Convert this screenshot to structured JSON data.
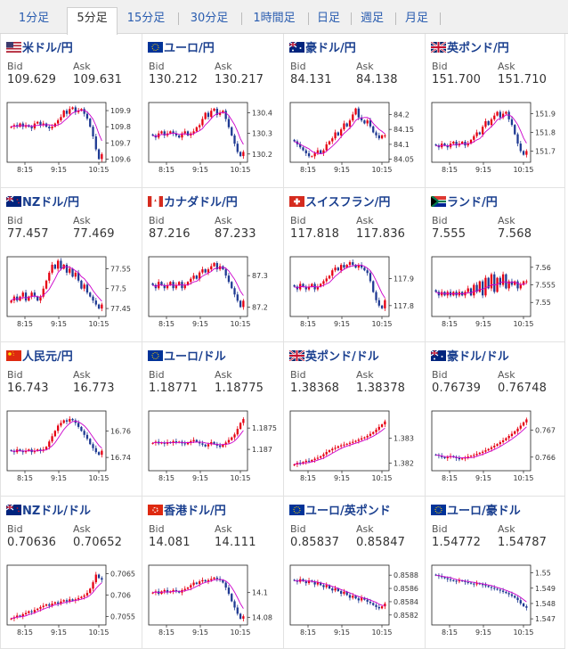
{
  "tabs": [
    {
      "label": "1分足",
      "active": false
    },
    {
      "label": "5分足",
      "active": true
    },
    {
      "label": "15分足",
      "active": false
    },
    {
      "label": "30分足",
      "active": false
    },
    {
      "label": "1時間足",
      "active": false
    },
    {
      "label": "日足",
      "active": false
    },
    {
      "label": "週足",
      "active": false
    },
    {
      "label": "月足",
      "active": false
    }
  ],
  "labels": {
    "bid": "Bid",
    "ask": "Ask"
  },
  "colors": {
    "up": "#e60012",
    "down": "#1f3a93",
    "ma": "#cc00cc",
    "link": "#1a3f8f"
  },
  "pairs": [
    {
      "name": "米ドル/円",
      "flag": "us",
      "bid": "109.629",
      "ask": "109.631",
      "x_ticks": [
        "8:15",
        "9:15",
        "10:15"
      ],
      "y_ticks": [
        "109.9",
        "109.8",
        "109.7",
        "109.6"
      ],
      "chart_data": {
        "type": "candlestick",
        "ylim": [
          109.58,
          109.95
        ],
        "close": [
          109.8,
          109.81,
          109.8,
          109.82,
          109.8,
          109.81,
          109.8,
          109.79,
          109.82,
          109.83,
          109.81,
          109.82,
          109.8,
          109.79,
          109.8,
          109.82,
          109.84,
          109.86,
          109.9,
          109.88,
          109.91,
          109.92,
          109.89,
          109.9,
          109.91,
          109.88,
          109.85,
          109.8,
          109.74,
          109.66,
          109.6,
          109.63
        ]
      }
    },
    {
      "name": "ユーロ/円",
      "flag": "eu",
      "bid": "130.212",
      "ask": "130.217",
      "x_ticks": [
        "8:15",
        "9:15",
        "10:15"
      ],
      "y_ticks": [
        "130.4",
        "130.3",
        "130.2"
      ],
      "chart_data": {
        "type": "candlestick",
        "ylim": [
          130.16,
          130.45
        ],
        "close": [
          130.29,
          130.28,
          130.3,
          130.31,
          130.29,
          130.3,
          130.31,
          130.3,
          130.29,
          130.28,
          130.3,
          130.31,
          130.29,
          130.3,
          130.31,
          130.33,
          130.34,
          130.37,
          130.4,
          130.38,
          130.41,
          130.42,
          130.39,
          130.4,
          130.41,
          130.37,
          130.33,
          130.29,
          130.25,
          130.21,
          130.19,
          130.21
        ]
      }
    },
    {
      "name": "豪ドル/円",
      "flag": "au",
      "bid": "84.131",
      "ask": "84.138",
      "x_ticks": [
        "8:15",
        "9:15",
        "10:15"
      ],
      "y_ticks": [
        "84.2",
        "84.15",
        "84.1",
        "84.05"
      ],
      "chart_data": {
        "type": "candlestick",
        "ylim": [
          84.04,
          84.24
        ],
        "close": [
          84.11,
          84.1,
          84.09,
          84.08,
          84.07,
          84.06,
          84.06,
          84.07,
          84.08,
          84.07,
          84.08,
          84.1,
          84.11,
          84.12,
          84.14,
          84.13,
          84.15,
          84.17,
          84.16,
          84.18,
          84.2,
          84.22,
          84.19,
          84.18,
          84.17,
          84.18,
          84.16,
          84.14,
          84.13,
          84.12,
          84.13,
          84.13
        ]
      }
    },
    {
      "name": "英ポンド/円",
      "flag": "gb",
      "bid": "151.700",
      "ask": "151.710",
      "x_ticks": [
        "8:15",
        "9:15",
        "10:15"
      ],
      "y_ticks": [
        "151.9",
        "151.8",
        "151.7"
      ],
      "chart_data": {
        "type": "candlestick",
        "ylim": [
          151.64,
          151.96
        ],
        "close": [
          151.73,
          151.72,
          151.74,
          151.73,
          151.72,
          151.74,
          151.75,
          151.73,
          151.74,
          151.75,
          151.73,
          151.74,
          151.76,
          151.78,
          151.8,
          151.79,
          151.83,
          151.86,
          151.84,
          151.87,
          151.89,
          151.91,
          151.88,
          151.9,
          151.91,
          151.87,
          151.84,
          151.79,
          151.74,
          151.7,
          151.68,
          151.7
        ]
      }
    },
    {
      "name": "NZドル/円",
      "flag": "nz",
      "bid": "77.457",
      "ask": "77.469",
      "x_ticks": [
        "8:15",
        "9:15",
        "10:15"
      ],
      "y_ticks": [
        "77.55",
        "77.5",
        "77.45"
      ],
      "chart_data": {
        "type": "candlestick",
        "ylim": [
          77.43,
          77.58
        ],
        "close": [
          77.47,
          77.48,
          77.47,
          77.48,
          77.49,
          77.47,
          77.48,
          77.49,
          77.48,
          77.47,
          77.48,
          77.5,
          77.52,
          77.54,
          77.56,
          77.55,
          77.57,
          77.55,
          77.56,
          77.54,
          77.55,
          77.53,
          77.54,
          77.52,
          77.5,
          77.51,
          77.49,
          77.48,
          77.47,
          77.46,
          77.45,
          77.46
        ]
      }
    },
    {
      "name": "カナダドル/円",
      "flag": "ca",
      "bid": "87.216",
      "ask": "87.233",
      "x_ticks": [
        "8:15",
        "9:15",
        "10:15"
      ],
      "y_ticks": [
        "87.3",
        "87.2"
      ],
      "chart_data": {
        "type": "candlestick",
        "ylim": [
          87.17,
          87.36
        ],
        "close": [
          87.27,
          87.26,
          87.28,
          87.27,
          87.26,
          87.27,
          87.28,
          87.26,
          87.27,
          87.28,
          87.26,
          87.27,
          87.28,
          87.29,
          87.3,
          87.29,
          87.31,
          87.32,
          87.31,
          87.32,
          87.33,
          87.34,
          87.32,
          87.33,
          87.32,
          87.3,
          87.28,
          87.26,
          87.24,
          87.22,
          87.2,
          87.22
        ]
      }
    },
    {
      "name": "スイスフラン/円",
      "flag": "ch",
      "bid": "117.818",
      "ask": "117.836",
      "x_ticks": [
        "8:15",
        "9:15",
        "10:15"
      ],
      "y_ticks": [
        "117.9",
        "117.8"
      ],
      "chart_data": {
        "type": "candlestick",
        "ylim": [
          117.76,
          117.98
        ],
        "close": [
          117.87,
          117.86,
          117.88,
          117.87,
          117.86,
          117.87,
          117.88,
          117.86,
          117.87,
          117.88,
          117.89,
          117.9,
          117.91,
          117.93,
          117.94,
          117.93,
          117.95,
          117.94,
          117.95,
          117.96,
          117.95,
          117.94,
          117.95,
          117.94,
          117.93,
          117.92,
          117.89,
          117.85,
          117.82,
          117.8,
          117.79,
          117.82
        ]
      }
    },
    {
      "name": "ランド/円",
      "flag": "za",
      "bid": "7.555",
      "ask": "7.568",
      "x_ticks": [
        "8:15",
        "9:15",
        "10:15"
      ],
      "y_ticks": [
        "7.56",
        "7.555",
        "7.55"
      ],
      "chart_data": {
        "type": "candlestick",
        "ylim": [
          7.546,
          7.563
        ],
        "close": [
          7.553,
          7.552,
          7.553,
          7.552,
          7.553,
          7.552,
          7.553,
          7.552,
          7.553,
          7.552,
          7.553,
          7.554,
          7.552,
          7.555,
          7.553,
          7.556,
          7.552,
          7.557,
          7.554,
          7.558,
          7.553,
          7.557,
          7.555,
          7.558,
          7.554,
          7.556,
          7.555,
          7.556,
          7.554,
          7.555,
          7.556,
          7.556
        ]
      }
    },
    {
      "name": "人民元/円",
      "flag": "cn",
      "bid": "16.743",
      "ask": "16.773",
      "x_ticks": [
        "8:15",
        "9:15",
        "10:15"
      ],
      "y_ticks": [
        "16.76",
        "16.74"
      ],
      "chart_data": {
        "type": "candlestick",
        "ylim": [
          16.73,
          16.775
        ],
        "close": [
          16.745,
          16.744,
          16.746,
          16.745,
          16.744,
          16.745,
          16.746,
          16.744,
          16.745,
          16.746,
          16.745,
          16.746,
          16.748,
          16.752,
          16.756,
          16.76,
          16.764,
          16.766,
          16.768,
          16.767,
          16.769,
          16.768,
          16.766,
          16.763,
          16.76,
          16.757,
          16.754,
          16.75,
          16.747,
          16.744,
          16.742,
          16.745
        ]
      }
    },
    {
      "name": "ユーロ/ドル",
      "flag": "eu",
      "bid": "1.18771",
      "ask": "1.18775",
      "x_ticks": [
        "8:15",
        "9:15",
        "10:15"
      ],
      "y_ticks": [
        "1.1875",
        "1.187"
      ],
      "chart_data": {
        "type": "candlestick",
        "ylim": [
          1.1865,
          1.1879
        ],
        "close": [
          1.18715,
          1.18718,
          1.18714,
          1.18716,
          1.18713,
          1.18717,
          1.18715,
          1.18719,
          1.18716,
          1.18718,
          1.18714,
          1.18712,
          1.18716,
          1.18719,
          1.18722,
          1.18718,
          1.18714,
          1.18711,
          1.18707,
          1.18712,
          1.18717,
          1.18713,
          1.18709,
          1.18706,
          1.18711,
          1.18716,
          1.18722,
          1.18728,
          1.18735,
          1.18748,
          1.18762,
          1.18771
        ]
      }
    },
    {
      "name": "英ポンド/ドル",
      "flag": "gb",
      "bid": "1.38368",
      "ask": "1.38378",
      "x_ticks": [
        "8:15",
        "9:15",
        "10:15"
      ],
      "y_ticks": [
        "1.383",
        "1.382"
      ],
      "chart_data": {
        "type": "candlestick",
        "ylim": [
          1.3817,
          1.3841
        ],
        "close": [
          1.38195,
          1.38202,
          1.38198,
          1.38205,
          1.3821,
          1.38207,
          1.38213,
          1.38218,
          1.38222,
          1.38228,
          1.38236,
          1.38245,
          1.38252,
          1.38258,
          1.38262,
          1.38268,
          1.38272,
          1.38275,
          1.38278,
          1.38282,
          1.38286,
          1.3829,
          1.38295,
          1.383,
          1.38304,
          1.3831,
          1.38318,
          1.38325,
          1.38335,
          1.38346,
          1.38356,
          1.38368
        ]
      }
    },
    {
      "name": "豪ドル/ドル",
      "flag": "au",
      "bid": "0.76739",
      "ask": "0.76748",
      "x_ticks": [
        "8:15",
        "9:15",
        "10:15"
      ],
      "y_ticks": [
        "0.767",
        "0.766"
      ],
      "chart_data": {
        "type": "candlestick",
        "ylim": [
          0.7655,
          0.7677
        ],
        "close": [
          0.76608,
          0.76605,
          0.766,
          0.76596,
          0.766,
          0.76604,
          0.766,
          0.76596,
          0.76592,
          0.76595,
          0.76598,
          0.76602,
          0.76605,
          0.76608,
          0.76612,
          0.76616,
          0.7662,
          0.76625,
          0.7663,
          0.76636,
          0.76642,
          0.76648,
          0.76655,
          0.76662,
          0.7667,
          0.76678,
          0.76686,
          0.76695,
          0.76705,
          0.76716,
          0.76728,
          0.76739
        ]
      }
    },
    {
      "name": "NZドル/ドル",
      "flag": "nz",
      "bid": "0.70636",
      "ask": "0.70652",
      "x_ticks": [
        "8:15",
        "9:15",
        "10:15"
      ],
      "y_ticks": [
        "0.7065",
        "0.706",
        "0.7055"
      ],
      "chart_data": {
        "type": "candlestick",
        "ylim": [
          0.7053,
          0.7067
        ],
        "close": [
          0.70545,
          0.70548,
          0.70552,
          0.7055,
          0.70555,
          0.70558,
          0.70562,
          0.7056,
          0.70565,
          0.70568,
          0.70572,
          0.70575,
          0.70578,
          0.70575,
          0.7058,
          0.70583,
          0.7058,
          0.70585,
          0.70588,
          0.70585,
          0.7059,
          0.70587,
          0.7059,
          0.70593,
          0.70596,
          0.70599,
          0.70605,
          0.70615,
          0.7063,
          0.70648,
          0.7064,
          0.70636
        ]
      }
    },
    {
      "name": "香港ドル/円",
      "flag": "hk",
      "bid": "14.081",
      "ask": "14.111",
      "x_ticks": [
        "8:15",
        "9:15",
        "10:15"
      ],
      "y_ticks": [
        "14.1",
        "14.08"
      ],
      "chart_data": {
        "type": "candlestick",
        "ylim": [
          14.074,
          14.122
        ],
        "close": [
          14.1,
          14.101,
          14.099,
          14.101,
          14.102,
          14.1,
          14.101,
          14.102,
          14.101,
          14.1,
          14.102,
          14.103,
          14.104,
          14.106,
          14.108,
          14.107,
          14.109,
          14.11,
          14.109,
          14.11,
          14.111,
          14.112,
          14.111,
          14.11,
          14.108,
          14.104,
          14.099,
          14.093,
          14.088,
          14.083,
          14.079,
          14.081
        ]
      }
    },
    {
      "name": "ユーロ/英ポンド",
      "flag": "eu",
      "bid": "0.85837",
      "ask": "0.85847",
      "x_ticks": [
        "8:15",
        "9:15",
        "10:15"
      ],
      "y_ticks": [
        "0.8588",
        "0.8586",
        "0.8584",
        "0.8582"
      ],
      "chart_data": {
        "type": "candlestick",
        "ylim": [
          0.85805,
          0.85895
        ],
        "close": [
          0.85872,
          0.8587,
          0.85874,
          0.85871,
          0.85868,
          0.85872,
          0.8587,
          0.85866,
          0.85869,
          0.85865,
          0.85862,
          0.85865,
          0.8586,
          0.85857,
          0.8586,
          0.85856,
          0.85852,
          0.85855,
          0.8585,
          0.85846,
          0.85849,
          0.85845,
          0.85842,
          0.85846,
          0.85843,
          0.8584,
          0.85838,
          0.85835,
          0.85832,
          0.8583,
          0.85833,
          0.85837
        ]
      }
    },
    {
      "name": "ユーロ/豪ドル",
      "flag": "eu",
      "bid": "1.54772",
      "ask": "1.54787",
      "x_ticks": [
        "8:15",
        "9:15",
        "10:15"
      ],
      "y_ticks": [
        "1.55",
        "1.549",
        "1.548",
        "1.547"
      ],
      "chart_data": {
        "type": "candlestick",
        "ylim": [
          1.5466,
          1.5505
        ],
        "close": [
          1.54985,
          1.54978,
          1.54972,
          1.54965,
          1.54958,
          1.54952,
          1.54948,
          1.54944,
          1.5495,
          1.54946,
          1.5494,
          1.54936,
          1.5493,
          1.54925,
          1.54932,
          1.54926,
          1.5492,
          1.54915,
          1.54908,
          1.54902,
          1.54896,
          1.5489,
          1.54884,
          1.54876,
          1.54868,
          1.5486,
          1.5485,
          1.54838,
          1.54822,
          1.548,
          1.54782,
          1.54772
        ]
      }
    }
  ]
}
